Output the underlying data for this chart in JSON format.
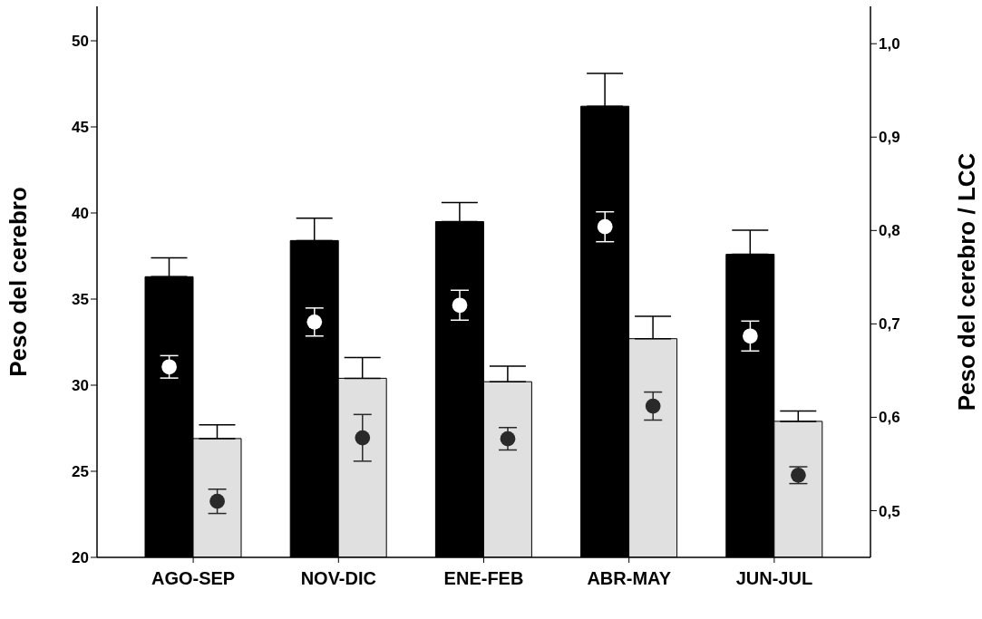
{
  "chart_data": {
    "type": "bar",
    "ylabel": "Peso del cerebro",
    "y2label": "Peso del cerebro / LCC",
    "categories": [
      "AGO-SEP",
      "NOV-DIC",
      "ENE-FEB",
      "ABR-MAY",
      "JUN-JUL"
    ],
    "ylim": [
      20,
      52
    ],
    "yticks": [
      20,
      25,
      30,
      35,
      40,
      45,
      50
    ],
    "y2lim": [
      0.45,
      1.04
    ],
    "y2ticks": [
      {
        "value": 0.5,
        "label": "0,5"
      },
      {
        "value": 0.6,
        "label": "0,6"
      },
      {
        "value": 0.7,
        "label": "0,7"
      },
      {
        "value": 0.8,
        "label": "0,8"
      },
      {
        "value": 0.9,
        "label": "0,9"
      },
      {
        "value": 1.0,
        "label": "1,0"
      }
    ],
    "grid": false,
    "legend": false,
    "series": [
      {
        "color": "#000000",
        "values": [
          36.3,
          38.4,
          39.5,
          46.2,
          37.6
        ],
        "errors": [
          [
            36.3,
            37.4
          ],
          [
            38.4,
            39.7
          ],
          [
            39.5,
            40.6
          ],
          [
            46.2,
            48.1
          ],
          [
            37.6,
            39.0
          ]
        ]
      },
      {
        "color": "#e0e0e0",
        "values": [
          26.9,
          30.4,
          30.2,
          32.7,
          27.9
        ],
        "errors": [
          [
            26.9,
            27.7
          ],
          [
            30.4,
            31.6
          ],
          [
            30.2,
            31.1
          ],
          [
            32.7,
            34.0
          ],
          [
            27.9,
            28.5
          ]
        ]
      },
      {
        "type": "scatter",
        "axis": "y2",
        "marker": "circle",
        "color": "#ffffff",
        "values": [
          0.654,
          0.702,
          0.72,
          0.804,
          0.687
        ],
        "errors": [
          0.012,
          0.015,
          0.016,
          0.016,
          0.016
        ]
      },
      {
        "type": "scatter",
        "axis": "y2",
        "marker": "circle",
        "color": "#2a2a2a",
        "values": [
          0.51,
          0.578,
          0.577,
          0.612,
          0.538
        ],
        "errors": [
          0.013,
          0.025,
          0.012,
          0.015,
          0.009
        ]
      }
    ]
  }
}
